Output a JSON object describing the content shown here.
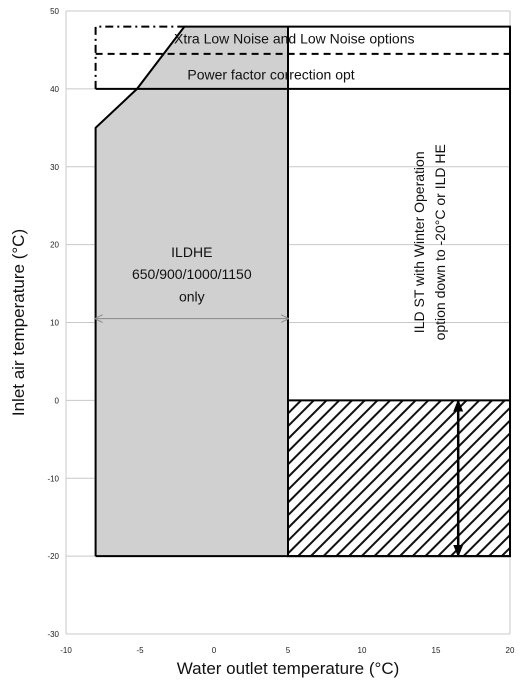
{
  "chart_data": {
    "type": "area",
    "xlabel": "Water outlet temperature (°C)",
    "ylabel": "Inlet air temperature (°C)",
    "xlim": [
      -10,
      20
    ],
    "ylim": [
      -30,
      50
    ],
    "xticks": [
      -10,
      -5,
      0,
      5,
      10,
      15,
      20
    ],
    "yticks": [
      -30,
      -20,
      -10,
      0,
      10,
      20,
      30,
      40,
      50
    ],
    "grid": "horizontal",
    "regions": {
      "ildhe_zone": {
        "fill": "#d0d0d0",
        "polygon": [
          [
            -8,
            -20
          ],
          [
            -8,
            35
          ],
          [
            -5.2,
            40
          ],
          [
            -2,
            48
          ],
          [
            5,
            48
          ],
          [
            5,
            -20
          ]
        ]
      },
      "main_envelope": {
        "x": [
          -8,
          20
        ],
        "y": [
          -20,
          48
        ]
      },
      "winter_operation_zone": {
        "x": [
          5,
          20
        ],
        "y": [
          -20,
          0
        ],
        "pattern": "diagonal-hatch"
      },
      "noise_options_dashdot": [
        [
          -8,
          40
        ],
        [
          -8,
          48
        ],
        [
          -2,
          48
        ]
      ],
      "noise_options_dashed_y": 44.5,
      "power_factor_line_y": 40
    },
    "annotations": {
      "noise": "Xtra Low Noise and Low Noise options",
      "power_factor": "Power factor correction opt",
      "ildhe_line1": "ILDHE",
      "ildhe_line2": "650/900/1000/1150",
      "ildhe_line3": "only",
      "winter_line1": "ILD ST with Winter Operation",
      "winter_line2": "option down to -20°C or ILD HE"
    },
    "ildhe_arrow": {
      "x": [
        -8,
        5
      ],
      "y": 10.5
    },
    "winter_arrow": {
      "x": 16.5,
      "y": [
        0,
        -20
      ]
    }
  }
}
